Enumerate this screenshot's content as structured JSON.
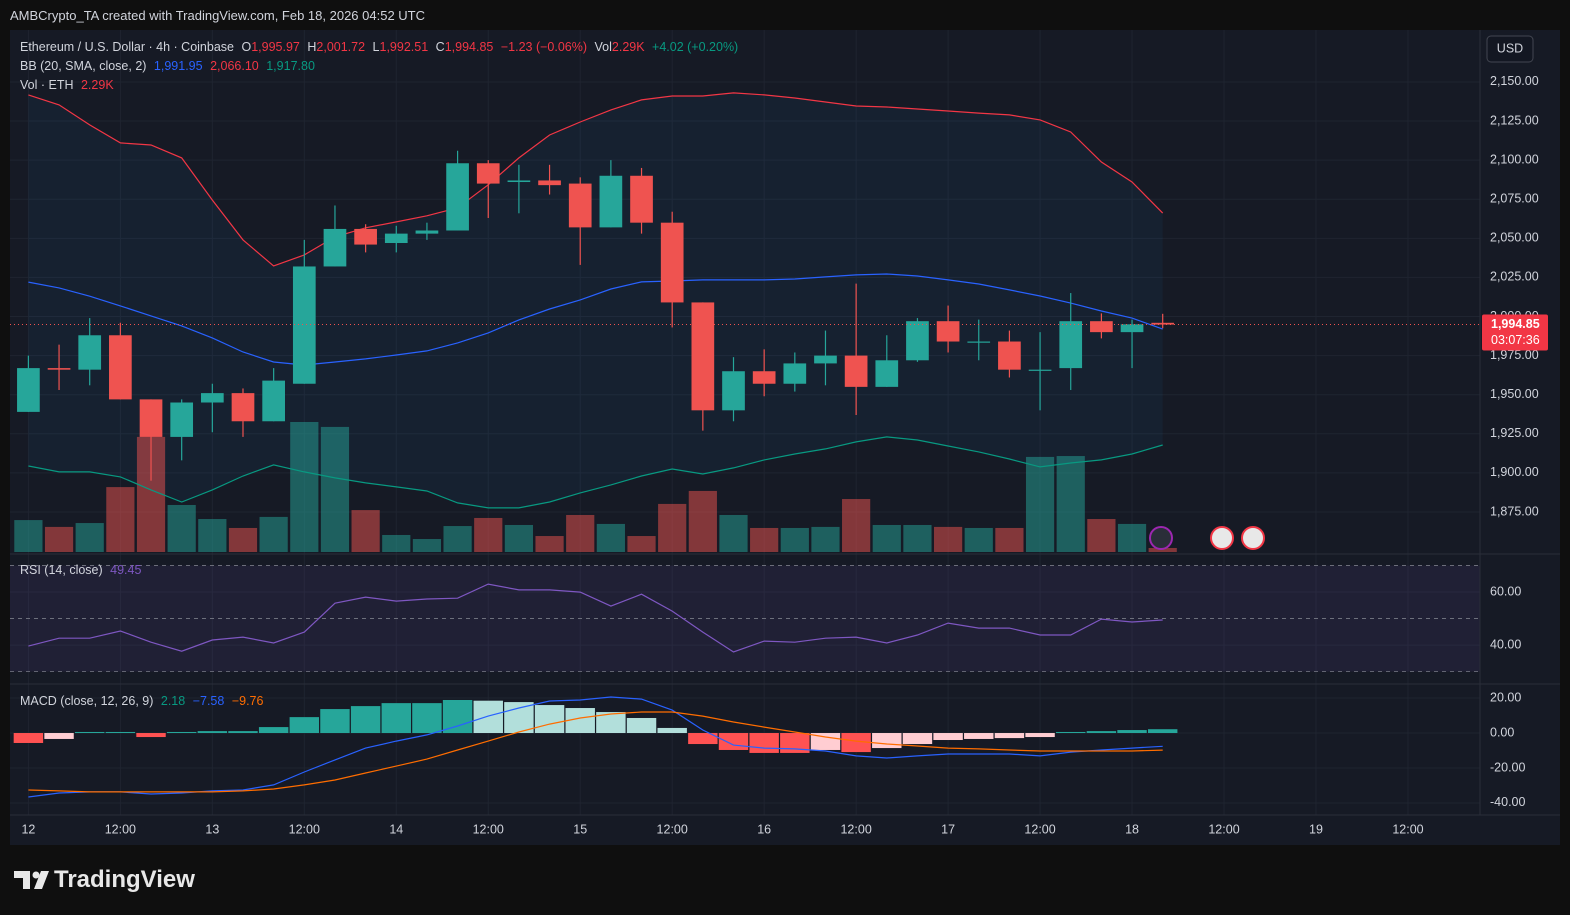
{
  "watermark": "AMBCrypto_TA created with TradingView.com, Feb 18, 2026 04:52 UTC",
  "brand": "TradingView",
  "chart_data": {
    "type": "candlestick",
    "title": "Ethereum / U.S. Dollar · 4h · Coinbase",
    "ohlc_legend": [
      [
        "O",
        "1,995.97"
      ],
      [
        "H",
        "2,001.72"
      ],
      [
        "L",
        "1,992.51"
      ],
      [
        "C",
        "1,994.85"
      ]
    ],
    "change": "−1.23 (−0.06%)",
    "volume_legend": [
      "Vol",
      "2.29K"
    ],
    "volume_change": "+4.02 (+0.20%)",
    "volume_name": "Vol · ETH",
    "volume_label": "2.29K",
    "currency": "USD",
    "last_price": {
      "value": 1994.85,
      "label": "1,994.85"
    },
    "countdown": "03:07:36",
    "grid": true,
    "up_color": "#26a69a",
    "down_color": "#ef5350",
    "x": [
      0,
      4,
      8,
      12,
      16,
      20,
      24,
      28,
      32,
      36,
      40,
      44,
      48,
      52,
      56,
      60,
      64,
      68,
      72,
      76,
      80,
      84,
      88,
      92,
      96,
      100,
      104,
      108,
      112,
      116,
      120,
      124,
      128,
      132,
      136,
      140,
      144,
      148
    ],
    "xlim": [
      -2.4,
      189.4
    ],
    "xticks": [
      {
        "value": 0,
        "label": "12"
      },
      {
        "value": 12,
        "label": "12:00"
      },
      {
        "value": 24,
        "label": "13"
      },
      {
        "value": 36,
        "label": "12:00"
      },
      {
        "value": 48,
        "label": "14"
      },
      {
        "value": 60,
        "label": "12:00"
      },
      {
        "value": 72,
        "label": "15"
      },
      {
        "value": 84,
        "label": "12:00"
      },
      {
        "value": 96,
        "label": "16"
      },
      {
        "value": 108,
        "label": "12:00"
      },
      {
        "value": 120,
        "label": "17"
      },
      {
        "value": 132,
        "label": "12:00"
      },
      {
        "value": 144,
        "label": "18"
      },
      {
        "value": 156,
        "label": "12:00"
      },
      {
        "value": 168,
        "label": "19"
      },
      {
        "value": 180,
        "label": "12:00"
      }
    ],
    "ylim": [
      1849.4,
      2178.1
    ],
    "yticks": [
      {
        "value": 2150,
        "label": "2,150.00"
      },
      {
        "value": 2125,
        "label": "2,125.00"
      },
      {
        "value": 2100,
        "label": "2,100.00"
      },
      {
        "value": 2075,
        "label": "2,075.00"
      },
      {
        "value": 2050,
        "label": "2,050.00"
      },
      {
        "value": 2025,
        "label": "2,025.00"
      },
      {
        "value": 2000,
        "label": "2,000.00"
      },
      {
        "value": 1975,
        "label": "1,975.00"
      },
      {
        "value": 1950,
        "label": "1,950.00"
      },
      {
        "value": 1925,
        "label": "1,925.00"
      },
      {
        "value": 1900,
        "label": "1,900.00"
      },
      {
        "value": 1875,
        "label": "1,875.00"
      }
    ],
    "candles": {
      "open": [
        1939,
        1967,
        1966,
        1988,
        1947,
        1923,
        1945,
        1951,
        1933,
        1957,
        2032,
        2056,
        2047,
        2053,
        2055,
        2098,
        2086,
        2087,
        2085,
        2057,
        2090,
        2060,
        2009,
        1940,
        1965,
        1957,
        1970,
        1975,
        1955,
        1972,
        1997,
        1984,
        1984,
        1966,
        1967,
        1997,
        1990,
        1995.97
      ],
      "high": [
        1975,
        1982,
        1999,
        1996,
        1947,
        1947,
        1957,
        1954,
        1967,
        2049,
        2071,
        2059,
        2058,
        2060,
        2106,
        2100,
        2097,
        2097,
        2089,
        2100,
        2095,
        2067,
        2009,
        1974,
        1979,
        1977,
        1991,
        2021,
        1988,
        1999,
        2007,
        1998,
        1991,
        1990,
        2015,
        2002,
        1998,
        2001.72
      ],
      "low": [
        1939,
        1953,
        1956,
        1947,
        1895,
        1908,
        1926,
        1923,
        1933,
        1957,
        2032,
        2041,
        2041,
        2049,
        2055,
        2063,
        2066,
        2078,
        2033,
        2057,
        2053,
        1993,
        1927,
        1933,
        1949,
        1952,
        1956,
        1937,
        1955,
        1971,
        1977,
        1972,
        1961,
        1940,
        1953,
        1986,
        1967,
        1992.51
      ],
      "close": [
        1967,
        1966,
        1988,
        1947,
        1923,
        1945,
        1951,
        1933,
        1959,
        2032,
        2056,
        2046,
        2053,
        2055,
        2098,
        2085,
        2087,
        2084,
        2057,
        2090,
        2060,
        2009,
        1940,
        1965,
        1957,
        1970,
        1975,
        1955,
        1972,
        1997,
        1984,
        1984,
        1966,
        1966,
        1997,
        1990,
        1995,
        1994.85
      ],
      "volume": [
        18.2,
        14.3,
        16.5,
        37,
        65.6,
        26.8,
        18.8,
        13.7,
        20,
        74.1,
        71.3,
        23.9,
        9.7,
        7.4,
        14.8,
        19.4,
        15.4,
        9.1,
        21.1,
        16,
        9.1,
        27.4,
        34.8,
        21.1,
        13.7,
        13.7,
        14.3,
        30.2,
        15.4,
        15.4,
        14.3,
        13.7,
        13.7,
        54.2,
        54.7,
        18.8,
        16,
        2.29
      ]
    },
    "volume_colors": {
      "up": "rgba(38,166,154,0.5)",
      "down": "rgba(239,83,80,0.5)"
    },
    "bollinger": {
      "name": "BB (20, SMA, close, 2)",
      "value_labels": {
        "basis": "1,991.95",
        "upper": "2,066.10",
        "lower": "1,917.80"
      },
      "colors": {
        "upper": "#f23645",
        "basis": "#2962ff",
        "lower": "#089981",
        "fill": "rgba(33,150,243,0.06)"
      },
      "upper": [
        2141.7,
        2135.3,
        2122.5,
        2111,
        2109.7,
        2101.4,
        2074.5,
        2049,
        2032.3,
        2039.4,
        2050.9,
        2056.7,
        2060.5,
        2064.4,
        2069.5,
        2084.2,
        2101.4,
        2116.1,
        2124.4,
        2132.1,
        2138.5,
        2141,
        2141,
        2143,
        2141.7,
        2139.7,
        2137.2,
        2134.6,
        2134,
        2132.7,
        2131.4,
        2130.1,
        2128.9,
        2125.7,
        2118,
        2098.8,
        2086,
        2066.1
      ],
      "basis": [
        2022,
        2018.3,
        2013,
        2006.8,
        2000.4,
        1994,
        1986.3,
        1977.3,
        1970.9,
        1969,
        1970.9,
        1972.9,
        1975.4,
        1978,
        1983.1,
        1989.5,
        1997.8,
        2004.8,
        2010.6,
        2017.6,
        2022.1,
        2022.7,
        2023.4,
        2023.4,
        2023.4,
        2024,
        2025.3,
        2026.6,
        2027.2,
        2025.9,
        2023.4,
        2020.8,
        2017,
        2013.1,
        2008.6,
        2003.5,
        1999,
        1991.95
      ],
      "lower": [
        1904.4,
        1900.6,
        1900.6,
        1897.4,
        1889.1,
        1881.4,
        1889.1,
        1898,
        1905.1,
        1900.6,
        1896.8,
        1893.6,
        1891,
        1888.4,
        1880.8,
        1877.6,
        1877.6,
        1881.4,
        1887.2,
        1892.3,
        1898,
        1902.5,
        1899.3,
        1903.2,
        1908.3,
        1912.1,
        1915.3,
        1919.8,
        1923,
        1921,
        1917.2,
        1913.4,
        1908.9,
        1903.8,
        1906.3,
        1908.3,
        1912.1,
        1917.8
      ]
    },
    "rsi": {
      "name": "RSI (14, close)",
      "value_label": "49.45",
      "color": "#7e57c2",
      "ylim": [
        25.7,
        73.6
      ],
      "yticks": [
        {
          "value": 60,
          "label": "60.00"
        },
        {
          "value": 40,
          "label": "40.00"
        }
      ],
      "bands": [
        70,
        50,
        30
      ],
      "values": [
        39.6,
        42.6,
        42.6,
        45.3,
        41.1,
        37.7,
        41.9,
        43,
        40.8,
        44.9,
        55.8,
        58.1,
        56.6,
        57.4,
        57.7,
        63,
        60.8,
        60.8,
        60,
        54.7,
        59.2,
        52.8,
        44.9,
        37.4,
        41.5,
        41.1,
        42.6,
        43,
        40.8,
        43.8,
        48.3,
        46.4,
        46.4,
        43.8,
        43.8,
        49.8,
        48.7,
        49.45
      ]
    },
    "macd": {
      "name": "MACD (close, 12, 26, 9)",
      "value_labels": {
        "histogram": "2.18",
        "macd": "−7.58",
        "signal": "−9.76"
      },
      "ylim": [
        -46.9,
        26.9
      ],
      "yticks": [
        {
          "value": 20,
          "label": "20.00"
        },
        {
          "value": 0,
          "label": "0.00"
        },
        {
          "value": -20,
          "label": "-20.00"
        },
        {
          "value": -40,
          "label": "-40.00"
        }
      ],
      "colors": {
        "macd": "#2962ff",
        "signal": "#ff6d00",
        "pos_up": "#26a69a",
        "pos_down": "#b2dfdb",
        "neg_down": "#ff5252",
        "neg_up": "#ffcdd2"
      },
      "histogram": [
        -5.7,
        -3.4,
        0.6,
        0.6,
        -2.3,
        0.6,
        1.1,
        1.1,
        3.4,
        9.1,
        13.7,
        15.4,
        17.1,
        17.1,
        18.9,
        18.5,
        17.7,
        16,
        14.3,
        12,
        8.6,
        2.9,
        -6.3,
        -9.7,
        -11.4,
        -11.4,
        -9.7,
        -10.9,
        -8.6,
        -6.3,
        -4,
        -3.4,
        -2.9,
        -2.3,
        0.6,
        1.1,
        1.7,
        2.18
      ],
      "macd": [
        -36.6,
        -34.3,
        -33.7,
        -33.7,
        -34.9,
        -34.3,
        -33.1,
        -32.6,
        -29.7,
        -22.3,
        -15.4,
        -8.6,
        -4.6,
        -1.1,
        4,
        9.7,
        14.3,
        18.3,
        18.9,
        20.6,
        19.4,
        13.1,
        1.7,
        -6.9,
        -8.6,
        -9.1,
        -10.3,
        -13.1,
        -14.3,
        -13.1,
        -12,
        -12,
        -12,
        -13.1,
        -10.9,
        -9.7,
        -8.6,
        -7.58
      ],
      "signal": [
        -32.6,
        -33.1,
        -33.7,
        -33.7,
        -33.7,
        -33.7,
        -33.7,
        -33.1,
        -32,
        -29.7,
        -26.9,
        -22.9,
        -18.9,
        -14.9,
        -9.7,
        -4.6,
        0.6,
        5.1,
        8.6,
        10.9,
        12,
        12,
        9.7,
        6.3,
        3.4,
        0.6,
        -2.3,
        -4.6,
        -6.3,
        -7.4,
        -8.6,
        -9.1,
        -9.7,
        -10.3,
        -10.3,
        -10.3,
        -10.3,
        -9.76
      ]
    }
  }
}
